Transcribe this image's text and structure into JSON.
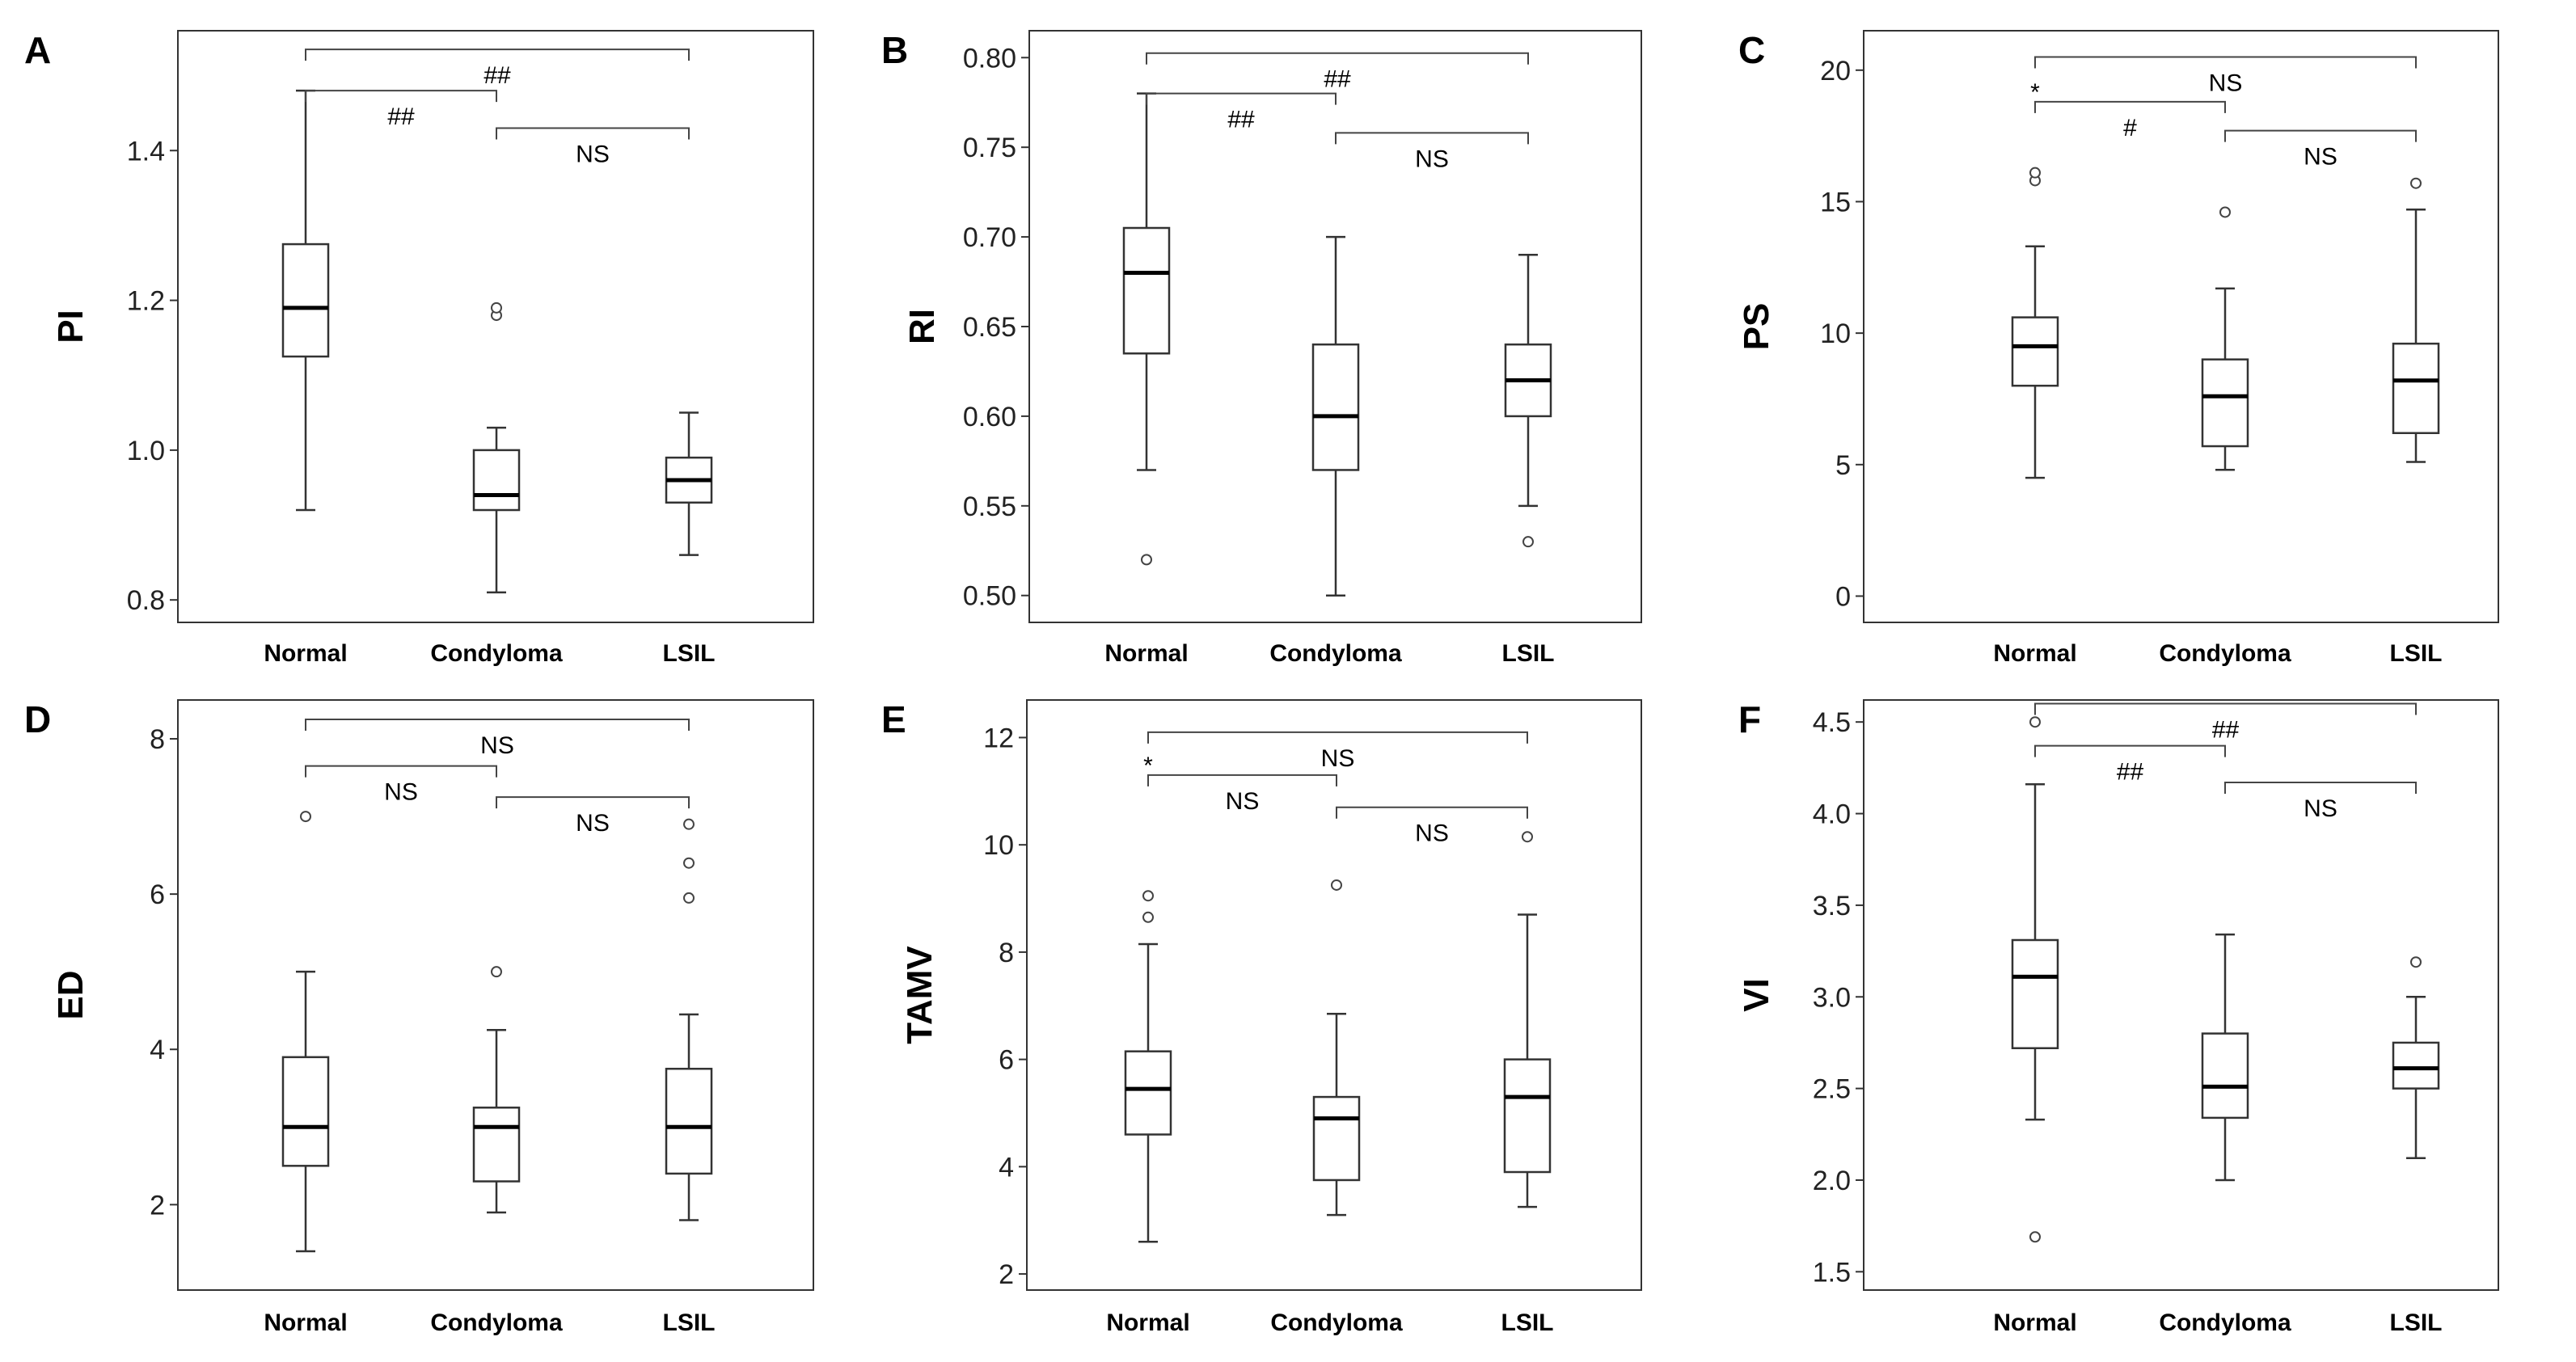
{
  "chart_data": [
    {
      "panel": "A",
      "type": "box",
      "ylabel": "PI",
      "ylim": [
        0.77,
        1.56
      ],
      "yticks": [
        0.8,
        1.0,
        1.2,
        1.4
      ],
      "tick_decimals": 1,
      "categories": [
        "Normal",
        "Condyloma",
        "LSIL"
      ],
      "boxes": [
        {
          "whisker_low": 0.92,
          "q1": 1.125,
          "median": 1.19,
          "q3": 1.275,
          "whisker_high": 1.48,
          "outliers": []
        },
        {
          "whisker_low": 0.81,
          "q1": 0.92,
          "median": 0.94,
          "q3": 1.0,
          "whisker_high": 1.03,
          "outliers": [
            1.18,
            1.19
          ]
        },
        {
          "whisker_low": 0.86,
          "q1": 0.93,
          "median": 0.96,
          "q3": 0.99,
          "whisker_high": 1.05,
          "outliers": []
        }
      ],
      "comparisons": [
        {
          "from": 0,
          "to": 2,
          "label": "##",
          "line_value": 1.535
        },
        {
          "from": 0,
          "to": 1,
          "label": "##",
          "line_value": 1.48
        },
        {
          "from": 1,
          "to": 2,
          "label": "NS",
          "line_value": 1.43
        }
      ]
    },
    {
      "panel": "B",
      "type": "box",
      "ylabel": "RI",
      "ylim": [
        0.485,
        0.815
      ],
      "yticks": [
        0.5,
        0.55,
        0.6,
        0.65,
        0.7,
        0.75,
        0.8
      ],
      "tick_decimals": 2,
      "categories": [
        "Normal",
        "Condyloma",
        "LSIL"
      ],
      "boxes": [
        {
          "whisker_low": 0.57,
          "q1": 0.635,
          "median": 0.68,
          "q3": 0.705,
          "whisker_high": 0.78,
          "outliers": [
            0.52
          ]
        },
        {
          "whisker_low": 0.5,
          "q1": 0.57,
          "median": 0.6,
          "q3": 0.64,
          "whisker_high": 0.7,
          "outliers": []
        },
        {
          "whisker_low": 0.55,
          "q1": 0.6,
          "median": 0.62,
          "q3": 0.64,
          "whisker_high": 0.69,
          "outliers": [
            0.53
          ]
        }
      ],
      "comparisons": [
        {
          "from": 0,
          "to": 2,
          "label": "##",
          "line_value": 0.8025
        },
        {
          "from": 0,
          "to": 1,
          "label": "##",
          "line_value": 0.78
        },
        {
          "from": 1,
          "to": 2,
          "label": "NS",
          "line_value": 0.758
        }
      ]
    },
    {
      "panel": "C",
      "type": "box",
      "ylabel": "PS",
      "ylim": [
        -1,
        21.5
      ],
      "yticks": [
        0,
        5,
        10,
        15,
        20
      ],
      "tick_decimals": 0,
      "categories": [
        "Normal",
        "Condyloma",
        "LSIL"
      ],
      "boxes": [
        {
          "whisker_low": 4.5,
          "q1": 8.0,
          "median": 9.5,
          "q3": 10.6,
          "whisker_high": 13.3,
          "outliers": [
            15.8,
            16.1
          ]
        },
        {
          "whisker_low": 4.8,
          "q1": 5.7,
          "median": 7.6,
          "q3": 9.0,
          "whisker_high": 11.7,
          "outliers": [
            14.6
          ]
        },
        {
          "whisker_low": 5.1,
          "q1": 6.2,
          "median": 8.2,
          "q3": 9.6,
          "whisker_high": 14.7,
          "outliers": [
            15.7
          ]
        }
      ],
      "comparisons": [
        {
          "from": 0,
          "to": 2,
          "label": "NS",
          "line_value": 20.5
        },
        {
          "from": 0,
          "to": 1,
          "label": "#",
          "line_value": 18.8,
          "star": true
        },
        {
          "from": 1,
          "to": 2,
          "label": "NS",
          "line_value": 17.7
        }
      ]
    },
    {
      "panel": "D",
      "type": "box",
      "ylabel": "ED",
      "ylim": [
        0.9,
        8.5
      ],
      "yticks": [
        2,
        4,
        6,
        8
      ],
      "tick_decimals": 0,
      "categories": [
        "Normal",
        "Condyloma",
        "LSIL"
      ],
      "boxes": [
        {
          "whisker_low": 1.4,
          "q1": 2.5,
          "median": 3.0,
          "q3": 3.9,
          "whisker_high": 5.0,
          "outliers": [
            7.0
          ]
        },
        {
          "whisker_low": 1.9,
          "q1": 2.3,
          "median": 3.0,
          "q3": 3.25,
          "whisker_high": 4.25,
          "outliers": [
            5.0
          ]
        },
        {
          "whisker_low": 1.8,
          "q1": 2.4,
          "median": 3.0,
          "q3": 3.75,
          "whisker_high": 4.45,
          "outliers": [
            5.95,
            6.4,
            6.9
          ]
        }
      ],
      "comparisons": [
        {
          "from": 0,
          "to": 2,
          "label": "NS",
          "line_value": 8.25
        },
        {
          "from": 0,
          "to": 1,
          "label": "NS",
          "line_value": 7.65
        },
        {
          "from": 1,
          "to": 2,
          "label": "NS",
          "line_value": 7.25
        }
      ]
    },
    {
      "panel": "E",
      "type": "box",
      "ylabel": "TAMV",
      "ylim": [
        1.7,
        12.7
      ],
      "yticks": [
        2,
        4,
        6,
        8,
        10,
        12
      ],
      "tick_decimals": 0,
      "categories": [
        "Normal",
        "Condyloma",
        "LSIL"
      ],
      "boxes": [
        {
          "whisker_low": 2.6,
          "q1": 4.6,
          "median": 5.45,
          "q3": 6.15,
          "whisker_high": 8.15,
          "outliers": [
            8.65,
            9.05
          ]
        },
        {
          "whisker_low": 3.1,
          "q1": 3.75,
          "median": 4.9,
          "q3": 5.3,
          "whisker_high": 6.85,
          "outliers": [
            9.25
          ]
        },
        {
          "whisker_low": 3.25,
          "q1": 3.9,
          "median": 5.3,
          "q3": 6.0,
          "whisker_high": 8.7,
          "outliers": [
            10.15
          ]
        }
      ],
      "comparisons": [
        {
          "from": 0,
          "to": 2,
          "label": "NS",
          "line_value": 12.1
        },
        {
          "from": 0,
          "to": 1,
          "label": "NS",
          "line_value": 11.3,
          "star": true
        },
        {
          "from": 1,
          "to": 2,
          "label": "NS",
          "line_value": 10.7
        }
      ]
    },
    {
      "panel": "F",
      "type": "box",
      "ylabel": "VI",
      "ylim": [
        1.4,
        4.62
      ],
      "yticks": [
        1.5,
        2.0,
        2.5,
        3.0,
        3.5,
        4.0,
        4.5
      ],
      "tick_decimals": 1,
      "categories": [
        "Normal",
        "Condyloma",
        "LSIL"
      ],
      "boxes": [
        {
          "whisker_low": 2.33,
          "q1": 2.72,
          "median": 3.11,
          "q3": 3.31,
          "whisker_high": 4.16,
          "outliers": [
            1.69,
            4.5
          ]
        },
        {
          "whisker_low": 2.0,
          "q1": 2.34,
          "median": 2.51,
          "q3": 2.8,
          "whisker_high": 3.34,
          "outliers": []
        },
        {
          "whisker_low": 2.12,
          "q1": 2.5,
          "median": 2.61,
          "q3": 2.75,
          "whisker_high": 3.0,
          "outliers": [
            3.19
          ]
        }
      ],
      "comparisons": [
        {
          "from": 0,
          "to": 2,
          "label": "##",
          "line_value": 4.6
        },
        {
          "from": 0,
          "to": 1,
          "label": "##",
          "line_value": 4.37
        },
        {
          "from": 1,
          "to": 2,
          "label": "NS",
          "line_value": 4.17
        }
      ]
    }
  ]
}
